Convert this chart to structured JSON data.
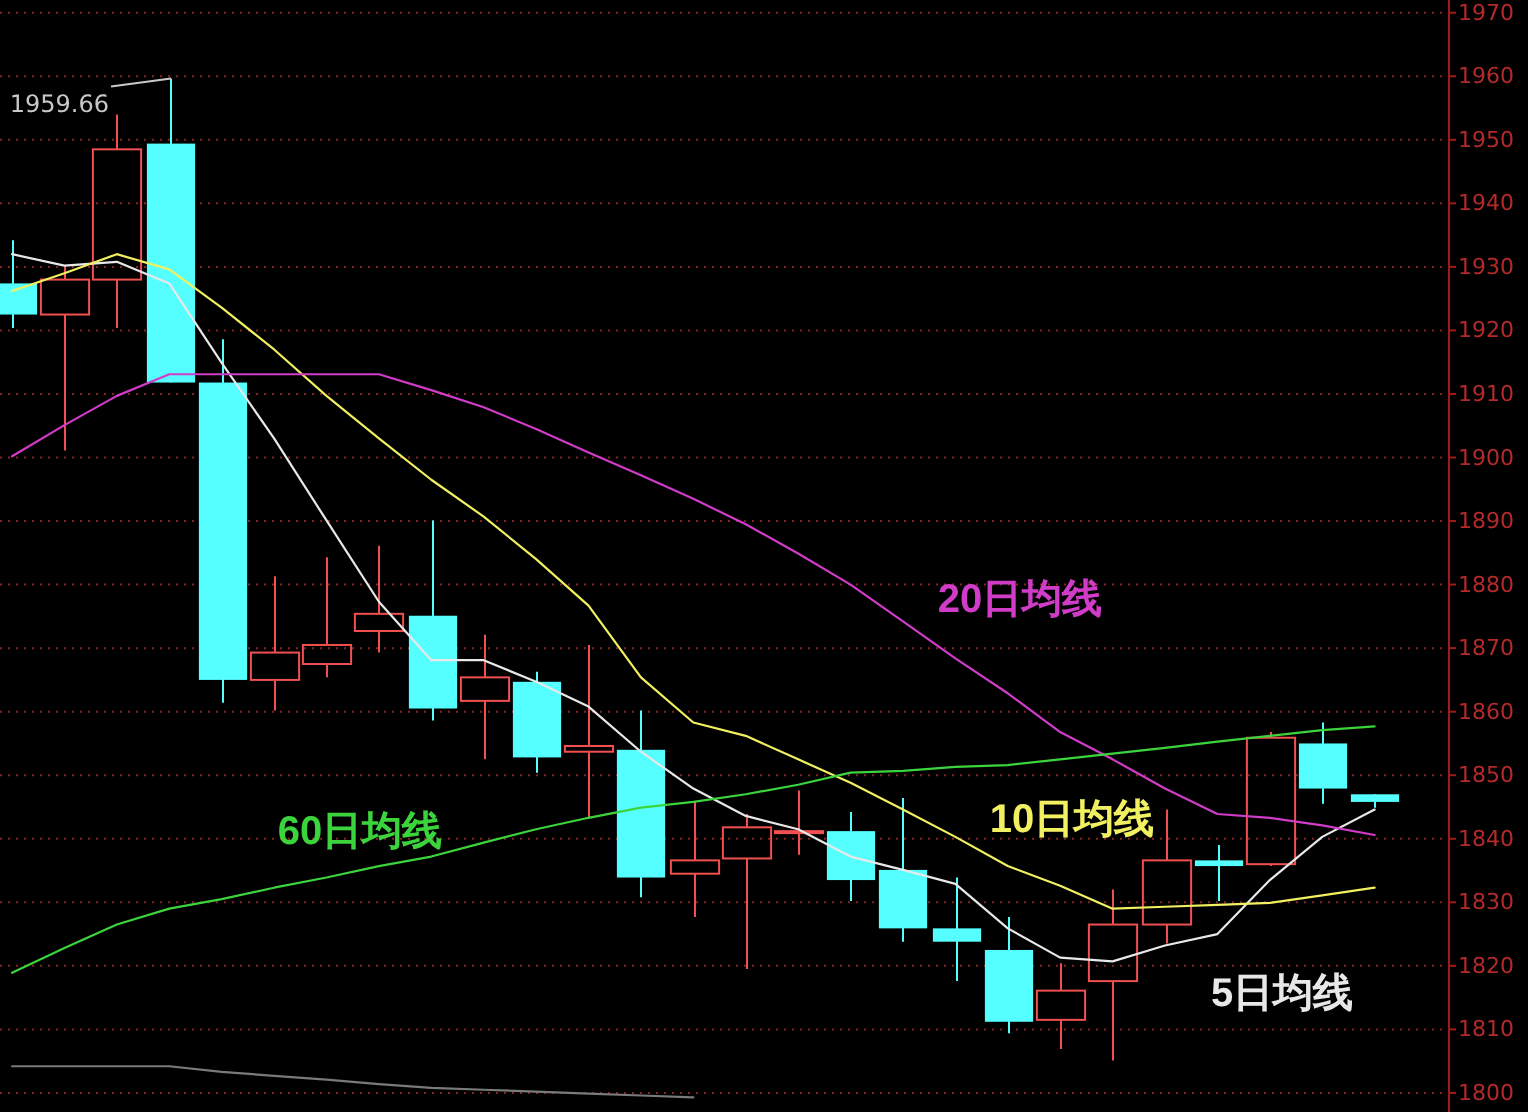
{
  "chart_data": {
    "type": "candlestick",
    "categories": [
      null,
      null,
      null,
      null,
      null,
      null,
      null,
      null,
      null,
      null,
      null,
      null,
      null,
      null,
      null,
      null,
      null,
      null,
      null,
      null,
      null,
      null,
      null,
      null,
      null,
      null,
      null
    ],
    "ohlc": [
      [
        1927.4,
        1934.2,
        1920.4,
        1922.5
      ],
      [
        1922.5,
        1930.2,
        1901.1,
        1928.0
      ],
      [
        1928.0,
        1954.0,
        1920.4,
        1948.5
      ],
      [
        1949.4,
        1959.66,
        1911.8,
        1911.8
      ],
      [
        1911.8,
        1918.6,
        1861.4,
        1865.0
      ],
      [
        1865.0,
        1881.3,
        1860.2,
        1869.3
      ],
      [
        1867.5,
        1884.3,
        1865.4,
        1870.5
      ],
      [
        1872.7,
        1886.1,
        1869.3,
        1875.4
      ],
      [
        1875.1,
        1890.1,
        1858.6,
        1860.5
      ],
      [
        1861.7,
        1872.1,
        1852.5,
        1865.4
      ],
      [
        1864.7,
        1866.3,
        1850.4,
        1852.8
      ],
      [
        1853.7,
        1870.5,
        1843.3,
        1854.6
      ],
      [
        1854.0,
        1860.2,
        1830.8,
        1833.9
      ],
      [
        1834.5,
        1845.8,
        1827.7,
        1836.6
      ],
      [
        1836.9,
        1843.9,
        1819.5,
        1841.8
      ],
      [
        1840.9,
        1847.6,
        1837.5,
        1841.2
      ],
      [
        1841.2,
        1844.2,
        1830.2,
        1833.5
      ],
      [
        1835.1,
        1846.4,
        1823.8,
        1825.9
      ],
      [
        1825.9,
        1833.9,
        1817.6,
        1823.8
      ],
      [
        1822.5,
        1827.7,
        1809.4,
        1811.2
      ],
      [
        1811.5,
        1820.4,
        1806.9,
        1816.1
      ],
      [
        1817.6,
        1832.0,
        1805.1,
        1826.5
      ],
      [
        1826.5,
        1844.6,
        1823.5,
        1836.6
      ],
      [
        1836.6,
        1839.0,
        1830.2,
        1835.7
      ],
      [
        1836.0,
        1856.8,
        1835.7,
        1855.9
      ],
      [
        1855.0,
        1858.3,
        1845.5,
        1847.9
      ],
      [
        1847.0,
        1847.0,
        1844.9,
        1845.8
      ]
    ],
    "colors": [
      "#55ffff",
      "#f05050",
      "#f05050",
      "#55ffff",
      "#55ffff",
      "#f05050",
      "#f05050",
      "#f05050",
      "#55ffff",
      "#f05050",
      "#55ffff",
      "#f05050",
      "#55ffff",
      "#f05050",
      "#f05050",
      "#f05050",
      "#55ffff",
      "#55ffff",
      "#55ffff",
      "#55ffff",
      "#f05050",
      "#f05050",
      "#f05050",
      "#55ffff",
      "#f05050",
      "#55ffff",
      "#55ffff"
    ],
    "series": [
      {
        "name": "5日均线",
        "type": "line",
        "color": "#e8e8e8",
        "values": [
          1932.0,
          1930.2,
          1930.8,
          1927.4,
          1914.9,
          1903.0,
          1890.1,
          1877.3,
          1868.1,
          1868.1,
          1864.7,
          1860.8,
          1853.7,
          1847.9,
          1843.6,
          1841.5,
          1837.2,
          1835.1,
          1832.9,
          1825.9,
          1821.3,
          1820.7,
          1823.2,
          1825.0,
          1833.5,
          1840.3,
          1844.6
        ]
      },
      {
        "name": "10日均线",
        "type": "line",
        "color": "#f0f060",
        "values": [
          1926.2,
          1929.0,
          1932.0,
          1929.6,
          1923.6,
          1917.0,
          1909.7,
          1903.0,
          1896.5,
          1890.7,
          1884.0,
          1876.7,
          1865.4,
          1858.3,
          1856.2,
          1852.5,
          1848.8,
          1844.6,
          1840.3,
          1835.7,
          1832.6,
          1829.0,
          1829.3,
          1829.6,
          1829.9,
          1831.1,
          1832.3
        ]
      },
      {
        "name": "20日均线",
        "type": "line",
        "color": "#d03cc8",
        "values": [
          1900.2,
          1905.1,
          1909.7,
          1913.1,
          1913.1,
          1913.1,
          1913.1,
          1913.1,
          1910.6,
          1907.9,
          1904.5,
          1900.8,
          1897.2,
          1893.5,
          1889.5,
          1884.9,
          1880.0,
          1874.2,
          1868.4,
          1862.9,
          1856.8,
          1852.5,
          1847.9,
          1843.9,
          1843.3,
          1842.1,
          1840.6
        ]
      },
      {
        "name": "60日均线",
        "type": "line",
        "color": "#3cd43c",
        "values": [
          1818.9,
          1822.8,
          1826.5,
          1829.0,
          1830.5,
          1832.3,
          1833.9,
          1835.7,
          1837.2,
          1839.4,
          1841.5,
          1843.3,
          1844.9,
          1845.8,
          1847.0,
          1848.5,
          1850.4,
          1850.7,
          1851.3,
          1851.6,
          1852.5,
          1853.4,
          1854.3,
          1855.3,
          1856.2,
          1857.1,
          1857.7
        ]
      },
      {
        "type": "line",
        "color": "#7a7a7a",
        "values": [
          1804.2,
          1804.2,
          1804.2,
          1804.2,
          1803.3,
          1802.7,
          1802.1,
          1801.4,
          1800.8,
          1800.5,
          1800.2,
          1799.9,
          1799.6,
          1799.3,
          null,
          null,
          null,
          null,
          null,
          null,
          null,
          null,
          null,
          null,
          null,
          null,
          null
        ]
      }
    ],
    "ylim": [
      1797,
      1972
    ],
    "yticks": [
      1800,
      1810,
      1820,
      1830,
      1840,
      1850,
      1860,
      1870,
      1880,
      1890,
      1900,
      1910,
      1920,
      1930,
      1940,
      1950,
      1960,
      1970
    ],
    "grid": "y",
    "annotations": [
      "1959.66"
    ]
  }
}
